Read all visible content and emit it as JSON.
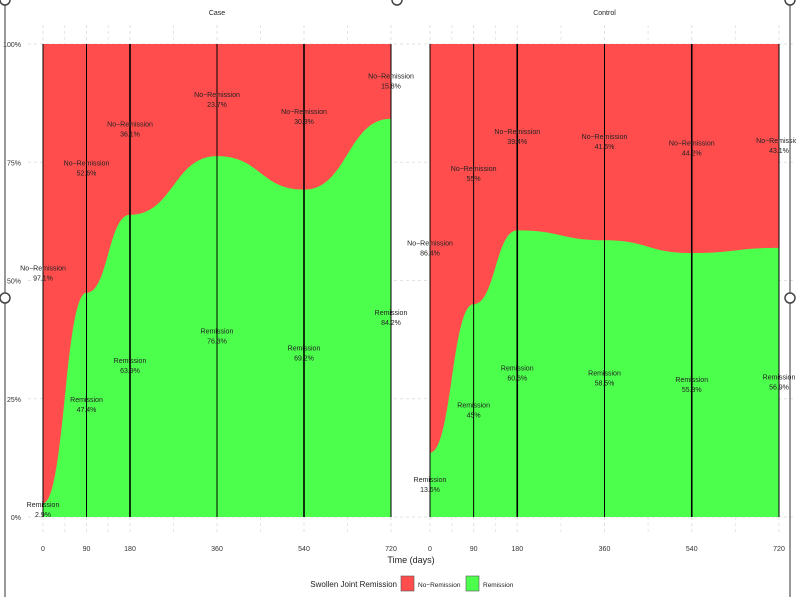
{
  "chart_data": {
    "type": "area",
    "subtype": "stacked-percent-alluvial",
    "xlabel": "Time (days)",
    "ylabel": "",
    "ylim": [
      0,
      100
    ],
    "y_ticks": [
      "0%",
      "25%",
      "50%",
      "75%",
      "100%"
    ],
    "x_ticks": [
      0,
      90,
      180,
      360,
      540,
      720
    ],
    "x_range": [
      0,
      720
    ],
    "grid": true,
    "legend": {
      "title": "Swollen Joint Remission",
      "placement": "bottom",
      "entries": [
        {
          "label": "No−Remission",
          "color": "#ff4d4d"
        },
        {
          "label": "Remission",
          "color": "#4dff4d"
        }
      ]
    },
    "panels": [
      {
        "title": "Case",
        "x": [
          0,
          90,
          180,
          360,
          540,
          720
        ],
        "series": [
          {
            "name": "Remission",
            "values": [
              2.9,
              47.4,
              63.9,
              76.3,
              69.2,
              84.2
            ],
            "labels": [
              "2.9%",
              "47.4%",
              "63.9%",
              "76.3%",
              "69.2%",
              "84.2%"
            ]
          },
          {
            "name": "No−Remission",
            "values": [
              97.1,
              52.6,
              36.1,
              23.7,
              30.8,
              15.8
            ],
            "labels": [
              "97.1%",
              "52.6%",
              "36.1%",
              "23.7%",
              "30.8%",
              "15.8%"
            ]
          }
        ]
      },
      {
        "title": "Control",
        "x": [
          0,
          90,
          180,
          360,
          540,
          720
        ],
        "series": [
          {
            "name": "Remission",
            "values": [
              13.6,
              45,
              60.6,
              58.5,
              55.8,
              56.9
            ],
            "labels": [
              "13.6%",
              "45%",
              "60.6%",
              "58.5%",
              "55.8%",
              "56.9%"
            ]
          },
          {
            "name": "No−Remission",
            "values": [
              86.4,
              55,
              39.4,
              41.5,
              44.2,
              43.1
            ],
            "labels": [
              "86.4%",
              "55%",
              "39.4%",
              "41.5%",
              "44.2%",
              "43.1%"
            ]
          }
        ]
      }
    ]
  }
}
